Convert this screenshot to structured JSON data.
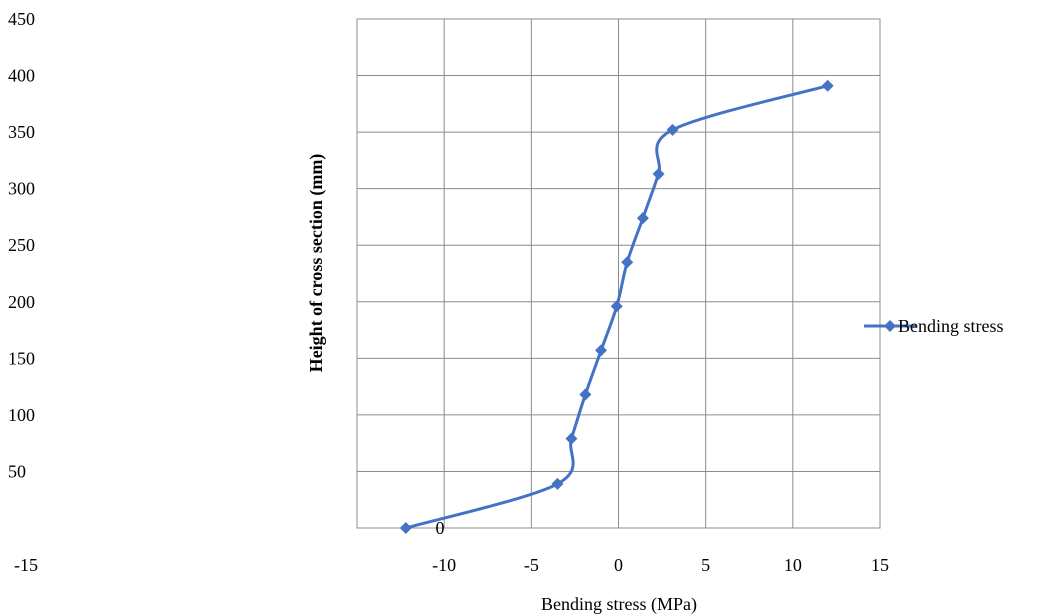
{
  "chart_data": {
    "type": "line",
    "title": "",
    "xlabel": "Bending stress (MPa)",
    "ylabel": "Height of cross section (mm)",
    "xlim": [
      -15,
      15
    ],
    "ylim": [
      0,
      450
    ],
    "x_ticks": [
      -15,
      -10,
      -5,
      0,
      5,
      10,
      15
    ],
    "y_ticks": [
      0,
      50,
      100,
      150,
      200,
      250,
      300,
      350,
      400,
      450
    ],
    "grid": true,
    "smooth": true,
    "legend_position": "right",
    "series": [
      {
        "name": "Bending stress",
        "color": "#4472C4",
        "marker": "diamond",
        "points": [
          {
            "x": -12.2,
            "y": 0
          },
          {
            "x": -3.5,
            "y": 39
          },
          {
            "x": -2.7,
            "y": 79
          },
          {
            "x": -1.9,
            "y": 118
          },
          {
            "x": -1.0,
            "y": 157
          },
          {
            "x": -0.1,
            "y": 196
          },
          {
            "x": 0.5,
            "y": 235
          },
          {
            "x": 1.4,
            "y": 274
          },
          {
            "x": 2.3,
            "y": 313
          },
          {
            "x": 3.1,
            "y": 352
          },
          {
            "x": 12.0,
            "y": 391
          }
        ]
      }
    ]
  }
}
